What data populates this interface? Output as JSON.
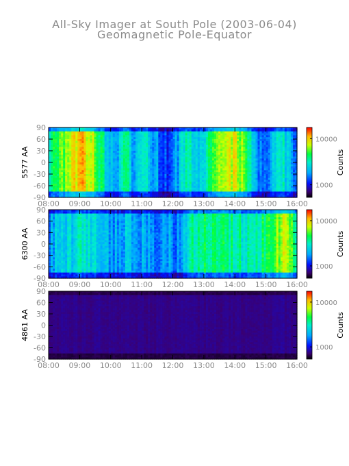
{
  "chart_data": {
    "type": "heatmap",
    "title": "All-Sky Imager at South Pole (2003-06-04)",
    "subtitle": "Geomagnetic Pole-Equator",
    "x_ticks": [
      "08:00",
      "09:00",
      "10:00",
      "11:00",
      "12:00",
      "13:00",
      "14:00",
      "15:00",
      "16:00"
    ],
    "y_ticks": [
      "90",
      "60",
      "30",
      "0",
      "-30",
      "-60",
      "-90"
    ],
    "ylim": [
      -90,
      90
    ],
    "colorbar": {
      "label": "Counts",
      "scale": "log",
      "ticks": [
        "10000",
        "1000"
      ],
      "colormap": "rainbow"
    },
    "panels": [
      {
        "ylabel": "5577 AA",
        "levels": [
          0.55,
          0.65,
          0.7,
          0.8,
          0.85,
          0.75,
          0.6,
          0.35,
          0.4,
          0.6,
          0.3,
          0.55,
          0.4,
          0.3,
          0.2,
          0.35,
          0.5,
          0.45,
          0.45,
          0.6,
          0.7,
          0.75,
          0.8,
          0.6,
          0.45,
          0.25,
          0.35,
          0.55,
          0.4,
          0.3
        ]
      },
      {
        "ylabel": "6300 AA",
        "levels": [
          0.35,
          0.4,
          0.45,
          0.45,
          0.5,
          0.45,
          0.4,
          0.35,
          0.35,
          0.4,
          0.35,
          0.35,
          0.3,
          0.3,
          0.35,
          0.3,
          0.4,
          0.55,
          0.6,
          0.6,
          0.55,
          0.55,
          0.55,
          0.5,
          0.5,
          0.55,
          0.6,
          0.7,
          0.75,
          0.55
        ]
      },
      {
        "ylabel": "4861 AA",
        "levels": [
          0.1,
          0.1,
          0.11,
          0.1,
          0.1,
          0.1,
          0.11,
          0.1,
          0.1,
          0.1,
          0.1,
          0.1,
          0.1,
          0.1,
          0.1,
          0.1,
          0.1,
          0.1,
          0.1,
          0.1,
          0.1,
          0.1,
          0.1,
          0.1,
          0.1,
          0.1,
          0.1,
          0.11,
          0.1,
          0.1
        ]
      }
    ]
  }
}
